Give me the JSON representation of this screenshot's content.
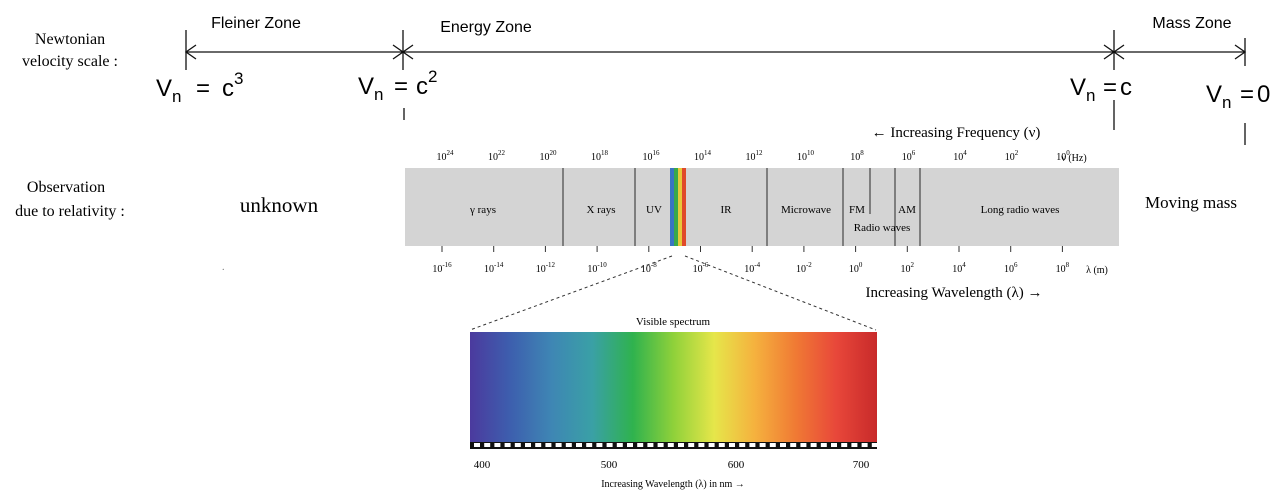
{
  "rows": {
    "velocity_label": [
      "Newtonian",
      "velocity scale :"
    ],
    "observation_label": [
      "Observation",
      "due to relativity :"
    ]
  },
  "zones": [
    {
      "id": "fleiner",
      "label": "Fleiner Zone"
    },
    {
      "id": "energy",
      "label": "Energy Zone"
    },
    {
      "id": "mass",
      "label": "Mass Zone"
    }
  ],
  "velocity_marks": [
    {
      "id": "c3",
      "base": "V",
      "sub": "n",
      "eq": "=",
      "val": "c",
      "sup": "3"
    },
    {
      "id": "c2",
      "base": "V",
      "sub": "n",
      "eq": "=",
      "val": "c",
      "sup": "2"
    },
    {
      "id": "c",
      "base": "V",
      "sub": "n",
      "eq": "=",
      "val": "c",
      "sup": ""
    },
    {
      "id": "zero",
      "base": "V",
      "sub": "n",
      "eq": "=",
      "val": "0",
      "sup": ""
    }
  ],
  "observations": {
    "left": "unknown",
    "right": "Moving mass"
  },
  "spectrum": {
    "frequency_caption": "← Increasing Frequency (ν)",
    "wavelength_caption": "Increasing Wavelength (λ) →",
    "frequency_ticks": [
      {
        "base": "10",
        "exp": "24"
      },
      {
        "base": "10",
        "exp": "22"
      },
      {
        "base": "10",
        "exp": "20"
      },
      {
        "base": "10",
        "exp": "18"
      },
      {
        "base": "10",
        "exp": "16"
      },
      {
        "base": "10",
        "exp": "14"
      },
      {
        "base": "10",
        "exp": "12"
      },
      {
        "base": "10",
        "exp": "10"
      },
      {
        "base": "10",
        "exp": "8"
      },
      {
        "base": "10",
        "exp": "6"
      },
      {
        "base": "10",
        "exp": "4"
      },
      {
        "base": "10",
        "exp": "2"
      },
      {
        "base": "10",
        "exp": "0"
      }
    ],
    "frequency_unit": "ν (Hz)",
    "wavelength_ticks": [
      {
        "base": "10",
        "exp": "-16"
      },
      {
        "base": "10",
        "exp": "-14"
      },
      {
        "base": "10",
        "exp": "-12"
      },
      {
        "base": "10",
        "exp": "-10"
      },
      {
        "base": "10",
        "exp": "-8"
      },
      {
        "base": "10",
        "exp": "-6"
      },
      {
        "base": "10",
        "exp": "-4"
      },
      {
        "base": "10",
        "exp": "-2"
      },
      {
        "base": "10",
        "exp": "0"
      },
      {
        "base": "10",
        "exp": "2"
      },
      {
        "base": "10",
        "exp": "4"
      },
      {
        "base": "10",
        "exp": "6"
      },
      {
        "base": "10",
        "exp": "8"
      }
    ],
    "wavelength_unit": "λ (m)",
    "bands": [
      {
        "id": "gamma",
        "label": "γ rays"
      },
      {
        "id": "xray",
        "label": "X rays"
      },
      {
        "id": "uv",
        "label": "UV"
      },
      {
        "id": "ir",
        "label": "IR"
      },
      {
        "id": "microwave",
        "label": "Microwave"
      },
      {
        "id": "fm",
        "label": "FM"
      },
      {
        "id": "am",
        "label": "AM"
      },
      {
        "id": "longradio",
        "label": "Long radio waves"
      }
    ],
    "radio_waves_label": "Radio waves",
    "band_color": "#d4d4d4"
  },
  "visible": {
    "title": "Visible spectrum",
    "ticks": [
      "400",
      "500",
      "600",
      "700"
    ],
    "axis_caption": "Increasing Wavelength (λ) in nm →",
    "colors": [
      "#4b3a9e",
      "#3d5fae",
      "#3e86b4",
      "#3aa0a6",
      "#2fb24e",
      "#8fd13a",
      "#e6e64a",
      "#f5b13e",
      "#f07a34",
      "#e8473a",
      "#c82a2a"
    ]
  }
}
